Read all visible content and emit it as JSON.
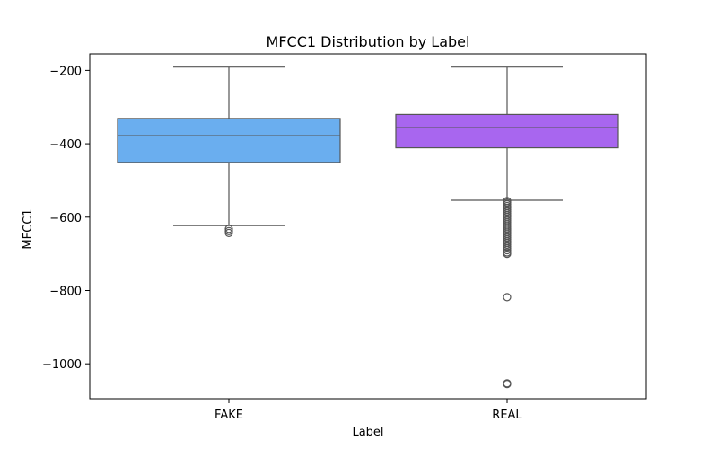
{
  "chart_data": {
    "type": "boxplot",
    "title": "MFCC1 Distribution by Label",
    "xlabel": "Label",
    "ylabel": "MFCC1",
    "categories": [
      "FAKE",
      "REAL"
    ],
    "ylim": [
      -1095,
      -155
    ],
    "yticks": [
      -200,
      -400,
      -600,
      -800,
      -1000
    ],
    "ytick_labels": [
      "−200",
      "−400",
      "−600",
      "−800",
      "−1000"
    ],
    "grid": false,
    "boxes": [
      {
        "label": "FAKE",
        "color": "#6aaeef",
        "whisker_low": -623,
        "q1": -451,
        "median": -378,
        "q3": -331,
        "whisker_high": -191,
        "outliers": [
          -632,
          -638,
          -643
        ]
      },
      {
        "label": "REAL",
        "color": "#a866ef",
        "whisker_low": -554,
        "q1": -411,
        "median": -356,
        "q3": -320,
        "whisker_high": -191,
        "outliers": [
          -556,
          -560,
          -565,
          -570,
          -575,
          -580,
          -585,
          -590,
          -595,
          -600,
          -605,
          -610,
          -615,
          -620,
          -625,
          -630,
          -635,
          -640,
          -645,
          -650,
          -655,
          -660,
          -665,
          -670,
          -675,
          -680,
          -685,
          -690,
          -696,
          -700,
          -818,
          -1053,
          -1055
        ]
      }
    ]
  }
}
